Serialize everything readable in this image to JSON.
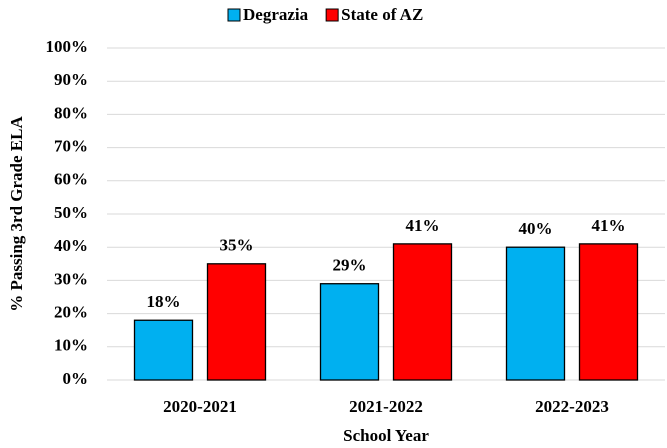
{
  "chart_data": {
    "type": "bar",
    "x_label": "School Year",
    "y_label": "% Passing 3rd Grade ELA",
    "categories": [
      "2020-2021",
      "2021-2022",
      "2022-2023"
    ],
    "series": [
      {
        "name": "Degrazia",
        "color": "#00b0f0",
        "values": [
          18,
          29,
          40
        ],
        "value_labels": [
          "18%",
          "29%",
          "40%"
        ]
      },
      {
        "name": "State of AZ",
        "color": "#ff0000",
        "values": [
          35,
          41,
          41
        ],
        "value_labels": [
          "35%",
          "41%",
          "41%"
        ]
      }
    ],
    "ylim": [
      0,
      100
    ],
    "yticks": [
      {
        "value": 0,
        "label": "0%"
      },
      {
        "value": 10,
        "label": "10%"
      },
      {
        "value": 20,
        "label": "20%"
      },
      {
        "value": 30,
        "label": "30%"
      },
      {
        "value": 40,
        "label": "40%"
      },
      {
        "value": 50,
        "label": "50%"
      },
      {
        "value": 60,
        "label": "60%"
      },
      {
        "value": 70,
        "label": "70%"
      },
      {
        "value": 80,
        "label": "80%"
      },
      {
        "value": 90,
        "label": "90%"
      },
      {
        "value": 100,
        "label": "100%"
      }
    ],
    "grid": true,
    "legend": "top"
  }
}
